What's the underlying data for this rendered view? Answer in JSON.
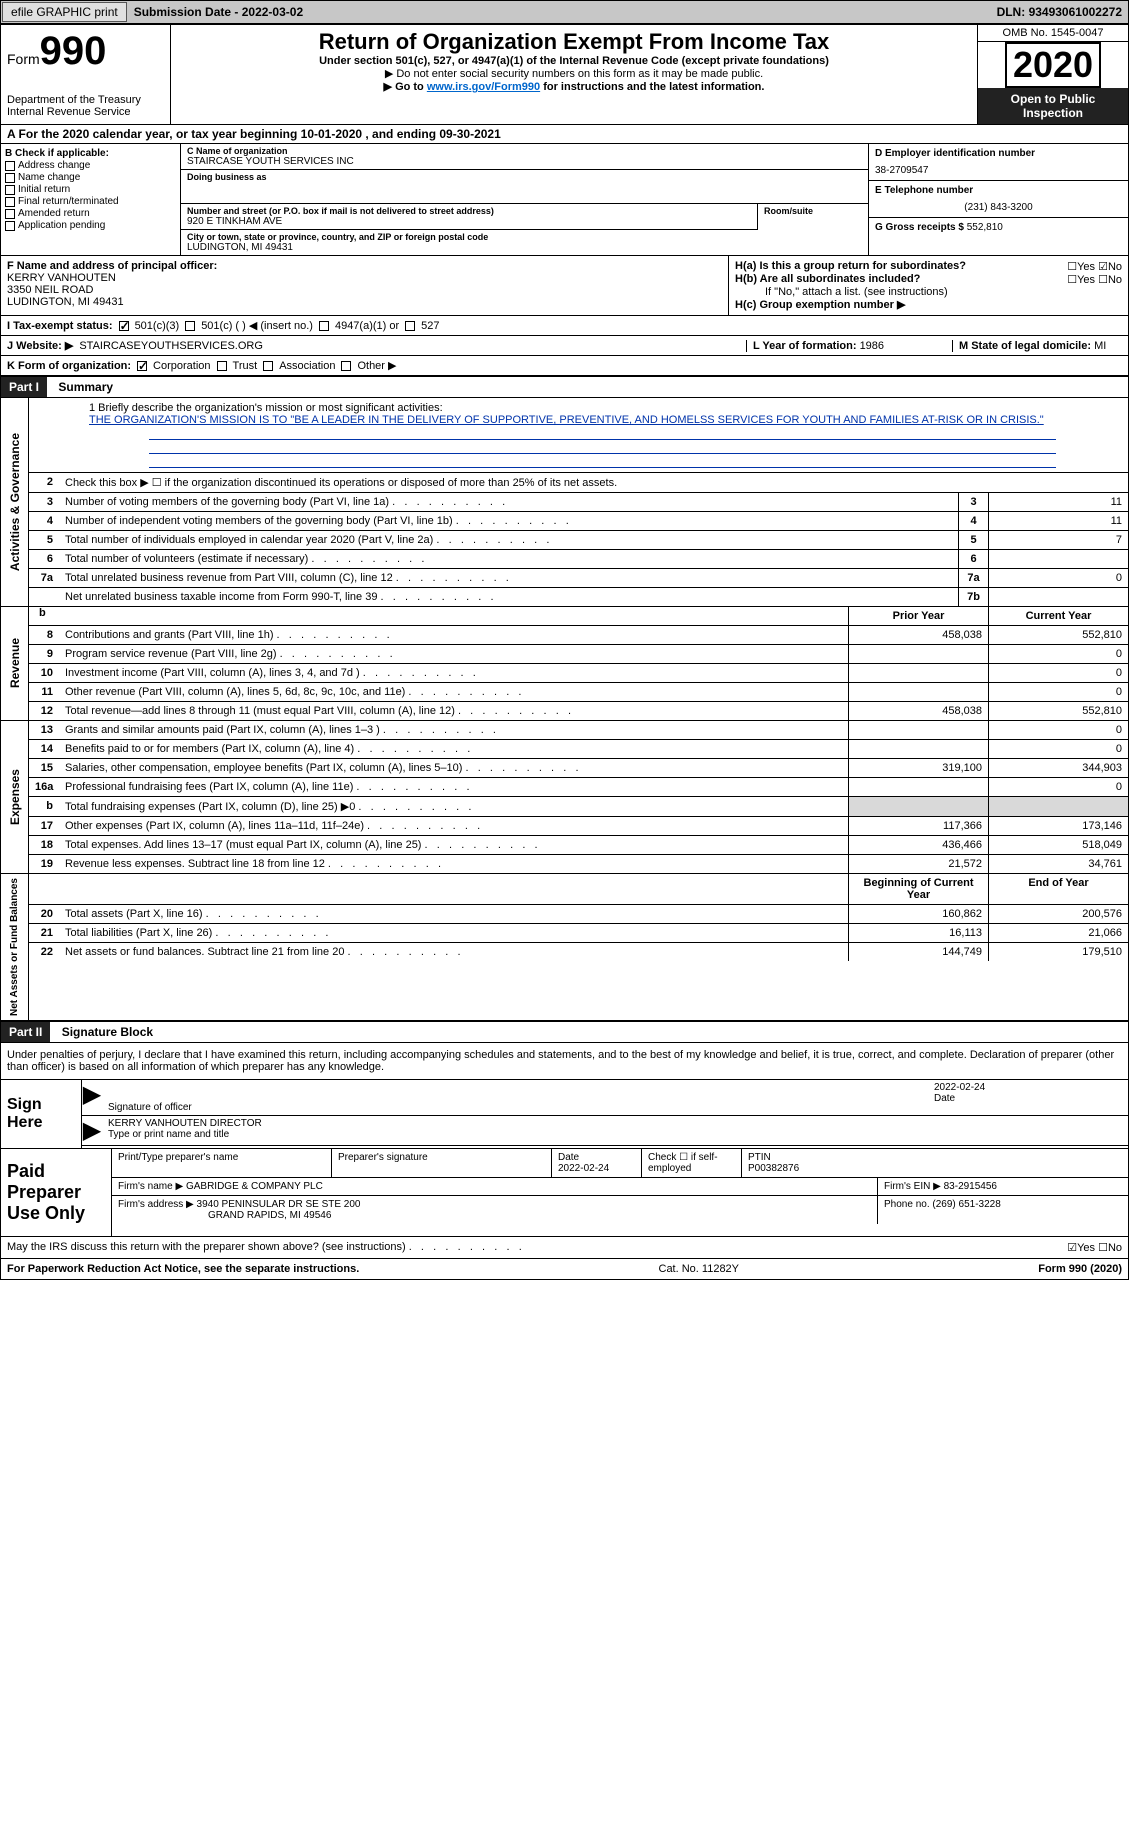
{
  "top": {
    "efile_btn": "efile GRAPHIC print",
    "subm_date_label": "Submission Date - ",
    "subm_date": "2022-03-02",
    "dln_label": "DLN: ",
    "dln": "93493061002272"
  },
  "header": {
    "form_word": "Form",
    "form_num": "990",
    "dept": "Department of the Treasury\nInternal Revenue Service",
    "title": "Return of Organization Exempt From Income Tax",
    "subtitle": "Under section 501(c), 527, or 4947(a)(1) of the Internal Revenue Code (except private foundations)",
    "note1": "▶ Do not enter social security numbers on this form as it may be made public.",
    "note2_pre": "▶ Go to ",
    "note2_link": "www.irs.gov/Form990",
    "note2_post": " for instructions and the latest information.",
    "omb": "OMB No. 1545-0047",
    "year": "2020",
    "otp": "Open to Public Inspection"
  },
  "period": "A For the 2020 calendar year, or tax year beginning 10-01-2020   , and ending 09-30-2021",
  "boxB": {
    "label": "B Check if applicable:",
    "items": [
      "Address change",
      "Name change",
      "Initial return",
      "Final return/terminated",
      "Amended return",
      "Application pending"
    ]
  },
  "boxC": {
    "name_label": "C Name of organization",
    "name": "STAIRCASE YOUTH SERVICES INC",
    "dba_label": "Doing business as",
    "dba": "",
    "addr_label": "Number and street (or P.O. box if mail is not delivered to street address)",
    "room_label": "Room/suite",
    "addr": "920 E TINKHAM AVE",
    "city_label": "City or town, state or province, country, and ZIP or foreign postal code",
    "city": "LUDINGTON, MI  49431"
  },
  "boxD": {
    "label": "D Employer identification number",
    "value": "38-2709547"
  },
  "boxE": {
    "label": "E Telephone number",
    "value": "(231) 843-3200"
  },
  "boxG": {
    "label": "G Gross receipts $ ",
    "value": "552,810"
  },
  "boxF": {
    "label": "F  Name and address of principal officer:",
    "name": "KERRY VANHOUTEN",
    "addr1": "3350 NEIL ROAD",
    "addr2": "LUDINGTON, MI  49431"
  },
  "boxH": {
    "a_label": "H(a)  Is this a group return for subordinates?",
    "b_label": "H(b)  Are all subordinates included?",
    "b_note": "If \"No,\" attach a list. (see instructions)",
    "c_label": "H(c)  Group exemption number ▶",
    "yes": "Yes",
    "no": "No"
  },
  "boxI": {
    "label": "I    Tax-exempt status:",
    "opts": [
      "501(c)(3)",
      "501(c) (  ) ◀ (insert no.)",
      "4947(a)(1) or",
      "527"
    ]
  },
  "boxJ": {
    "label": "J   Website: ▶",
    "value": "STAIRCASEYOUTHSERVICES.ORG"
  },
  "boxK": {
    "label": "K Form of organization:",
    "opts": [
      "Corporation",
      "Trust",
      "Association",
      "Other ▶"
    ]
  },
  "boxL": {
    "label": "L Year of formation: ",
    "value": "1986"
  },
  "boxM": {
    "label": "M State of legal domicile: ",
    "value": "MI"
  },
  "part1": {
    "header": "Part I",
    "title": "Summary"
  },
  "mission": {
    "label": "1  Briefly describe the organization's mission or most significant activities:",
    "text": "THE ORGANIZATION'S MISSION IS TO \"BE A LEADER IN THE DELIVERY OF SUPPORTIVE, PREVENTIVE, AND HOMELSS SERVICES FOR YOUTH AND FAMILIES AT-RISK OR IN CRISIS.\""
  },
  "line2": "Check this box ▶ ☐  if the organization discontinued its operations or disposed of more than 25% of its net assets.",
  "governance_label": "Activities & Governance",
  "governance": [
    {
      "n": "3",
      "d": "Number of voting members of the governing body (Part VI, line 1a)",
      "b": "3",
      "v": "11"
    },
    {
      "n": "4",
      "d": "Number of independent voting members of the governing body (Part VI, line 1b)",
      "b": "4",
      "v": "11"
    },
    {
      "n": "5",
      "d": "Total number of individuals employed in calendar year 2020 (Part V, line 2a)",
      "b": "5",
      "v": "7"
    },
    {
      "n": "6",
      "d": "Total number of volunteers (estimate if necessary)",
      "b": "6",
      "v": ""
    },
    {
      "n": "7a",
      "d": "Total unrelated business revenue from Part VIII, column (C), line 12",
      "b": "7a",
      "v": "0"
    },
    {
      "n": "",
      "d": "Net unrelated business taxable income from Form 990-T, line 39",
      "b": "7b",
      "v": ""
    }
  ],
  "headers_pycry": {
    "spacer": "b",
    "prior": "Prior Year",
    "current": "Current Year"
  },
  "revenue_label": "Revenue",
  "revenue": [
    {
      "n": "8",
      "d": "Contributions and grants (Part VIII, line 1h)",
      "p": "458,038",
      "c": "552,810"
    },
    {
      "n": "9",
      "d": "Program service revenue (Part VIII, line 2g)",
      "p": "",
      "c": "0"
    },
    {
      "n": "10",
      "d": "Investment income (Part VIII, column (A), lines 3, 4, and 7d )",
      "p": "",
      "c": "0"
    },
    {
      "n": "11",
      "d": "Other revenue (Part VIII, column (A), lines 5, 6d, 8c, 9c, 10c, and 11e)",
      "p": "",
      "c": "0"
    },
    {
      "n": "12",
      "d": "Total revenue—add lines 8 through 11 (must equal Part VIII, column (A), line 12)",
      "p": "458,038",
      "c": "552,810"
    }
  ],
  "expenses_label": "Expenses",
  "expenses": [
    {
      "n": "13",
      "d": "Grants and similar amounts paid (Part IX, column (A), lines 1–3 )",
      "p": "",
      "c": "0"
    },
    {
      "n": "14",
      "d": "Benefits paid to or for members (Part IX, column (A), line 4)",
      "p": "",
      "c": "0"
    },
    {
      "n": "15",
      "d": "Salaries, other compensation, employee benefits (Part IX, column (A), lines 5–10)",
      "p": "319,100",
      "c": "344,903"
    },
    {
      "n": "16a",
      "d": "Professional fundraising fees (Part IX, column (A), line 11e)",
      "p": "",
      "c": "0"
    },
    {
      "n": "b",
      "d": "Total fundraising expenses (Part IX, column (D), line 25) ▶0",
      "p": "SHADE",
      "c": "SHADE"
    },
    {
      "n": "17",
      "d": "Other expenses (Part IX, column (A), lines 11a–11d, 11f–24e)",
      "p": "117,366",
      "c": "173,146"
    },
    {
      "n": "18",
      "d": "Total expenses. Add lines 13–17 (must equal Part IX, column (A), line 25)",
      "p": "436,466",
      "c": "518,049"
    },
    {
      "n": "19",
      "d": "Revenue less expenses. Subtract line 18 from line 12",
      "p": "21,572",
      "c": "34,761"
    }
  ],
  "netassets_label": "Net Assets or Fund Balances",
  "na_headers": {
    "bcy": "Beginning of Current Year",
    "eoy": "End of Year"
  },
  "netassets": [
    {
      "n": "20",
      "d": "Total assets (Part X, line 16)",
      "p": "160,862",
      "c": "200,576"
    },
    {
      "n": "21",
      "d": "Total liabilities (Part X, line 26)",
      "p": "16,113",
      "c": "21,066"
    },
    {
      "n": "22",
      "d": "Net assets or fund balances. Subtract line 21 from line 20",
      "p": "144,749",
      "c": "179,510"
    }
  ],
  "part2": {
    "header": "Part II",
    "title": "Signature Block"
  },
  "penalty": "Under penalties of perjury, I declare that I have examined this return, including accompanying schedules and statements, and to the best of my knowledge and belief, it is true, correct, and complete. Declaration of preparer (other than officer) is based on all information of which preparer has any knowledge.",
  "sign": {
    "label": "Sign Here",
    "sig_label": "Signature of officer",
    "date_label": "Date",
    "date": "2022-02-24",
    "name": "KERRY VANHOUTEN  DIRECTOR",
    "name_label": "Type or print name and title"
  },
  "prep": {
    "label": "Paid Preparer Use Only",
    "r1": {
      "c1": "Print/Type preparer's name",
      "c2": "Preparer's signature",
      "c3l": "Date",
      "c3v": "2022-02-24",
      "c4": "Check ☐ if self-employed",
      "c5l": "PTIN",
      "c5v": "P00382876"
    },
    "r2": {
      "l": "Firm's name    ▶",
      "v": "GABRIDGE & COMPANY PLC",
      "einl": "Firm's EIN ▶",
      "einv": "83-2915456"
    },
    "r3": {
      "l": "Firm's address ▶",
      "v1": "3940 PENINSULAR DR SE STE 200",
      "v2": "GRAND RAPIDS, MI  49546",
      "phl": "Phone no.",
      "phv": "(269) 651-3228"
    }
  },
  "discuss": {
    "q": "May the IRS discuss this return with the preparer shown above? (see instructions)",
    "yes": "Yes",
    "no": "No"
  },
  "footer": {
    "l": "For Paperwork Reduction Act Notice, see the separate instructions.",
    "m": "Cat. No. 11282Y",
    "r": "Form 990 (2020)"
  }
}
